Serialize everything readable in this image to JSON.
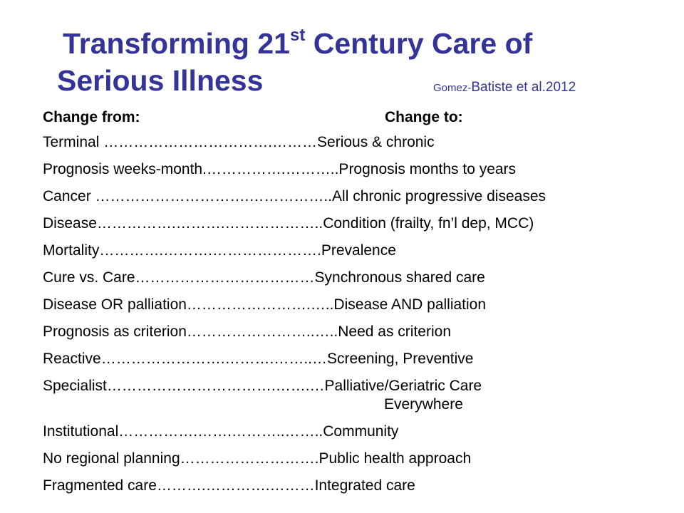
{
  "title": {
    "line1_pre": "Transforming 21",
    "line1_sup": "st",
    "line1_post": " Century Care of",
    "line2": "Serious Illness",
    "citation_small": "Gomez-",
    "citation_main": "Batiste et al.2012"
  },
  "headers": {
    "from": "Change from:",
    "to": "Change to:"
  },
  "rows": [
    {
      "text": "Terminal …………………………….………Serious & chronic"
    },
    {
      "text": "Prognosis weeks-month.…………….………..Prognosis months to years"
    },
    {
      "text": "Cancer ………………………….……………..All chronic progressive diseases"
    },
    {
      "text": "Disease…………….……….………………..Condition (frailty, fn’l dep, MCC)"
    },
    {
      "text": "Mortality………….……….………………….Prevalence"
    },
    {
      "text": "Cure vs. Care………………………………Synchronous shared care"
    },
    {
      "text": "Disease OR palliation…………………….…..Disease AND palliation"
    },
    {
      "text": "Prognosis as criterion……………………..…..Need as criterion"
    },
    {
      "text": "Reactive…………………….……….……..…Screening, Preventive"
    },
    {
      "text": "Specialist…………………………….…….…Palliative/Geriatric Care",
      "continuation": "Everywhere"
    },
    {
      "text": "Institutional…………….…….………..……..Community"
    },
    {
      "text": "No regional planning……………………….Public health approach"
    },
    {
      "text": "Fragmented care……….………….………Integrated care"
    }
  ]
}
